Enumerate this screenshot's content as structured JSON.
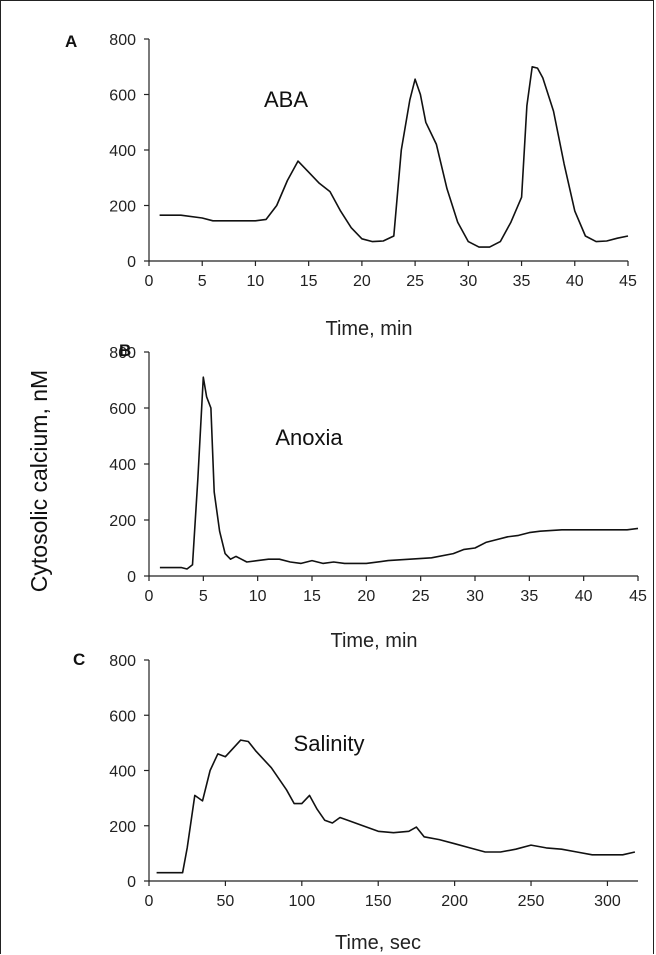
{
  "ylabel": "Cytosolic calcium, nM",
  "chart_data": [
    {
      "type": "line",
      "panel": "A",
      "annotation": "ABA",
      "xlabel": "Time, min",
      "xlim": [
        0,
        45
      ],
      "ylim": [
        0,
        800
      ],
      "xticks": [
        0,
        5,
        10,
        15,
        20,
        25,
        30,
        35,
        40,
        45
      ],
      "yticks": [
        0,
        200,
        400,
        600,
        800
      ],
      "grid": false,
      "x": [
        1,
        3,
        5,
        6,
        8,
        10,
        11,
        12,
        13,
        14,
        15,
        16,
        17,
        18,
        19,
        20,
        21,
        22,
        23,
        23.7,
        24.5,
        25,
        25.5,
        26,
        27,
        28,
        29,
        30,
        31,
        32,
        33,
        34,
        35,
        35.5,
        36,
        36.5,
        37,
        38,
        39,
        40,
        41,
        42,
        43,
        44,
        45
      ],
      "y": [
        165,
        165,
        155,
        145,
        145,
        145,
        150,
        200,
        290,
        360,
        320,
        280,
        250,
        180,
        120,
        80,
        70,
        72,
        90,
        400,
        580,
        655,
        600,
        500,
        420,
        260,
        140,
        70,
        50,
        50,
        70,
        140,
        230,
        560,
        700,
        695,
        660,
        540,
        350,
        180,
        90,
        70,
        72,
        82,
        90
      ]
    },
    {
      "type": "line",
      "panel": "B",
      "annotation": "Anoxia",
      "xlabel": "Time, min",
      "xlim": [
        0,
        45
      ],
      "ylim": [
        0,
        800
      ],
      "xticks": [
        0,
        5,
        10,
        15,
        20,
        25,
        30,
        35,
        40,
        45
      ],
      "yticks": [
        0,
        200,
        400,
        600,
        800
      ],
      "grid": false,
      "x": [
        1,
        2,
        3,
        3.5,
        4,
        4.5,
        5,
        5.3,
        5.7,
        6,
        6.5,
        7,
        7.5,
        8,
        8.5,
        9,
        10,
        11,
        12,
        13,
        14,
        15,
        16,
        17,
        18,
        20,
        22,
        24,
        26,
        28,
        29,
        30,
        31,
        32,
        33,
        34,
        35,
        36,
        38,
        40,
        42,
        44,
        45
      ],
      "y": [
        30,
        30,
        30,
        25,
        40,
        350,
        710,
        640,
        600,
        300,
        160,
        80,
        60,
        70,
        60,
        50,
        55,
        60,
        60,
        50,
        45,
        55,
        45,
        50,
        45,
        45,
        55,
        60,
        65,
        80,
        95,
        100,
        120,
        130,
        140,
        145,
        155,
        160,
        165,
        165,
        165,
        165,
        170
      ]
    },
    {
      "type": "line",
      "panel": "C",
      "annotation": "Salinity",
      "xlabel": "Time, sec",
      "xlim": [
        0,
        320
      ],
      "ylim": [
        0,
        800
      ],
      "xticks": [
        0,
        50,
        100,
        150,
        200,
        250,
        300
      ],
      "yticks": [
        0,
        200,
        400,
        600,
        800
      ],
      "grid": false,
      "x": [
        5,
        15,
        22,
        25,
        30,
        35,
        40,
        45,
        50,
        55,
        60,
        65,
        70,
        80,
        90,
        95,
        100,
        105,
        110,
        115,
        120,
        125,
        130,
        140,
        150,
        160,
        170,
        175,
        180,
        190,
        200,
        210,
        220,
        230,
        240,
        250,
        260,
        270,
        280,
        290,
        300,
        310,
        318
      ],
      "y": [
        30,
        30,
        30,
        120,
        310,
        290,
        400,
        460,
        450,
        480,
        510,
        505,
        470,
        410,
        330,
        280,
        280,
        310,
        260,
        220,
        210,
        230,
        220,
        200,
        180,
        175,
        180,
        195,
        160,
        150,
        135,
        120,
        105,
        105,
        115,
        130,
        120,
        115,
        105,
        95,
        95,
        95,
        105
      ]
    }
  ]
}
